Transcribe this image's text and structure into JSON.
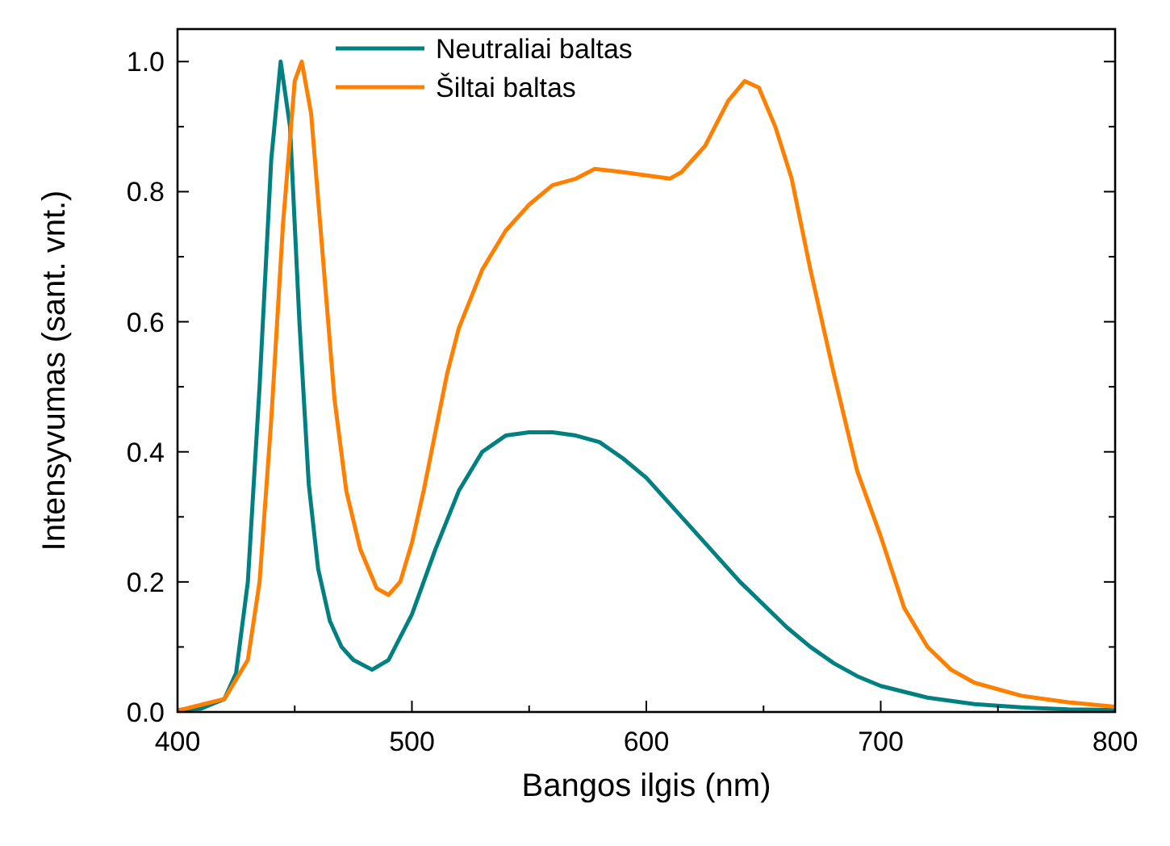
{
  "chart_data": {
    "type": "line",
    "xlabel": "Bangos ilgis (nm)",
    "ylabel": "Intensyvumas (sant. vnt.)",
    "xlim": [
      400,
      800
    ],
    "ylim": [
      0,
      1.05
    ],
    "xticks": [
      400,
      {
        "value": 450,
        "label": null
      },
      500,
      {
        "value": 550,
        "label": null
      },
      600,
      {
        "value": 650,
        "label": null
      },
      700,
      {
        "value": 750,
        "label": null
      },
      800
    ],
    "yticks": [
      {
        "value": 0,
        "label": "0.0"
      },
      {
        "value": 0.1,
        "label": null
      },
      {
        "value": 0.2,
        "label": "0.2"
      },
      {
        "value": 0.3,
        "label": null
      },
      {
        "value": 0.4,
        "label": "0.4"
      },
      {
        "value": 0.5,
        "label": null
      },
      {
        "value": 0.6,
        "label": "0.6"
      },
      {
        "value": 0.7,
        "label": null
      },
      {
        "value": 0.8,
        "label": "0.8"
      },
      {
        "value": 0.9,
        "label": null
      },
      {
        "value": 1,
        "label": "1.0"
      }
    ],
    "legend": "top left",
    "grid": false,
    "marker": "none",
    "line_style": "solid",
    "series": [
      {
        "name": "Neutraliai baltas",
        "color": "#008080",
        "x": [
          400,
          410,
          420,
          425,
          430,
          435,
          440,
          444,
          448,
          452,
          456,
          460,
          465,
          470,
          475,
          483,
          490,
          500,
          510,
          520,
          530,
          540,
          550,
          560,
          570,
          580,
          590,
          600,
          610,
          620,
          630,
          640,
          650,
          660,
          670,
          680,
          690,
          700,
          720,
          740,
          760,
          780,
          800
        ],
        "values": [
          0.003,
          0.005,
          0.02,
          0.06,
          0.2,
          0.5,
          0.85,
          1.0,
          0.9,
          0.6,
          0.35,
          0.22,
          0.14,
          0.1,
          0.08,
          0.065,
          0.08,
          0.15,
          0.25,
          0.34,
          0.4,
          0.425,
          0.43,
          0.43,
          0.425,
          0.415,
          0.39,
          0.36,
          0.32,
          0.28,
          0.24,
          0.2,
          0.165,
          0.13,
          0.1,
          0.075,
          0.055,
          0.04,
          0.022,
          0.012,
          0.007,
          0.004,
          0.003
        ]
      },
      {
        "name": "Šiltai baltas",
        "color": "#ff8000",
        "x": [
          400,
          420,
          430,
          435,
          440,
          445,
          450,
          453,
          457,
          462,
          467,
          472,
          478,
          485,
          490,
          495,
          500,
          505,
          510,
          515,
          520,
          530,
          540,
          550,
          560,
          570,
          578,
          590,
          600,
          610,
          615,
          625,
          635,
          642,
          648,
          655,
          662,
          670,
          680,
          690,
          700,
          710,
          720,
          730,
          740,
          760,
          780,
          800
        ],
        "values": [
          0.002,
          0.02,
          0.08,
          0.2,
          0.45,
          0.75,
          0.97,
          1.0,
          0.92,
          0.7,
          0.48,
          0.34,
          0.25,
          0.19,
          0.18,
          0.2,
          0.26,
          0.34,
          0.43,
          0.52,
          0.59,
          0.68,
          0.74,
          0.78,
          0.81,
          0.82,
          0.835,
          0.83,
          0.825,
          0.82,
          0.83,
          0.87,
          0.94,
          0.97,
          0.96,
          0.9,
          0.82,
          0.68,
          0.52,
          0.37,
          0.27,
          0.16,
          0.1,
          0.065,
          0.045,
          0.025,
          0.015,
          0.008
        ]
      }
    ]
  }
}
